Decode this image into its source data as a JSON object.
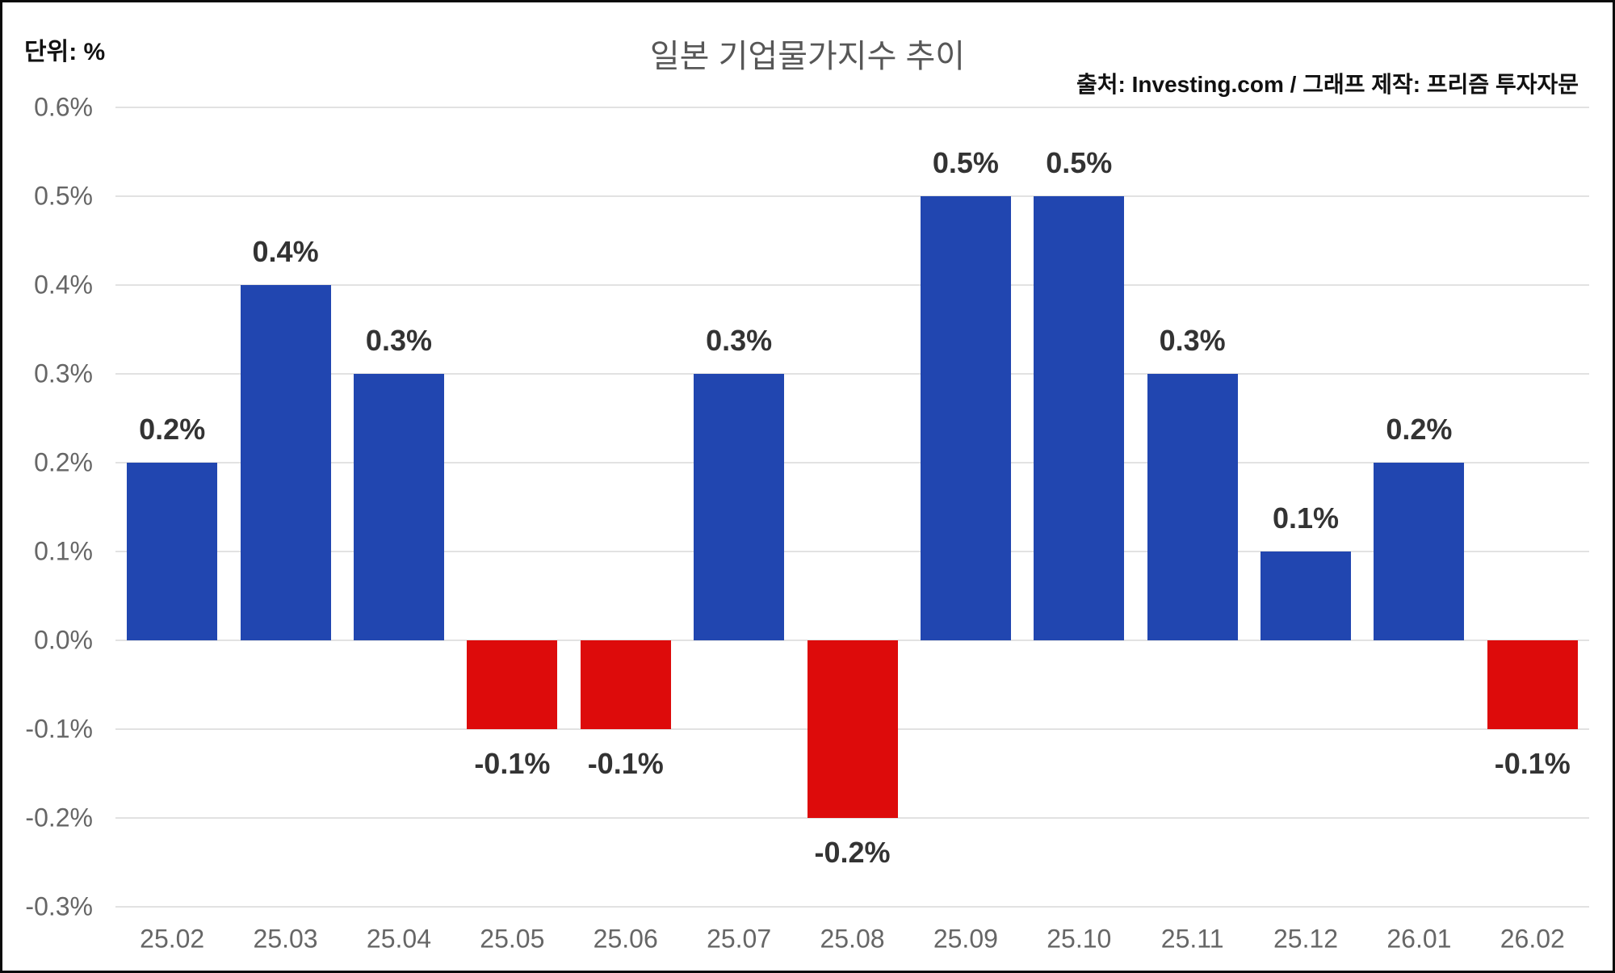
{
  "header": {
    "unit_label": "단위: %",
    "title": "일본 기업물가지수 추이",
    "source": "출처: Investing.com / 그래프 제작: 프리즘 투자자문"
  },
  "chart_data": {
    "type": "bar",
    "title": "일본 기업물가지수 추이",
    "unit": "%",
    "source": "출처: Investing.com / 그래프 제작: 프리즘 투자자문",
    "categories": [
      "25.02",
      "25.03",
      "25.04",
      "25.05",
      "25.06",
      "25.07",
      "25.08",
      "25.09",
      "25.10",
      "25.11",
      "25.12",
      "26.01",
      "26.02"
    ],
    "values": [
      0.2,
      0.4,
      0.3,
      -0.1,
      -0.1,
      0.3,
      -0.2,
      0.5,
      0.5,
      0.3,
      0.1,
      0.2,
      -0.1
    ],
    "bar_labels": [
      "0.2%",
      "0.4%",
      "0.3%",
      "-0.1%",
      "-0.1%",
      "0.3%",
      "-0.2%",
      "0.5%",
      "0.5%",
      "0.3%",
      "0.1%",
      "0.2%",
      "-0.1%"
    ],
    "y_tick_values": [
      0.6,
      0.5,
      0.4,
      0.3,
      0.2,
      0.1,
      0.0,
      -0.1,
      -0.2,
      -0.3
    ],
    "y_tick_labels": [
      "0.6%",
      "0.5%",
      "0.4%",
      "0.3%",
      "0.2%",
      "0.1%",
      "0.0%",
      "-0.1%",
      "-0.2%",
      "-0.3%"
    ],
    "ylim": [
      -0.3,
      0.6
    ],
    "grid": true,
    "legend": false,
    "xlabel": "",
    "ylabel": "",
    "colors": {
      "positive_bar": "#2146b0",
      "negative_bar": "#dd0b0b",
      "grid_line": "#e2e2e2",
      "axis_text": "#666666",
      "value_label_text": "#333333",
      "title_text": "#575757",
      "header_text": "#111111",
      "background": "#ffffff",
      "frame_border": "#0a0a0a"
    }
  }
}
